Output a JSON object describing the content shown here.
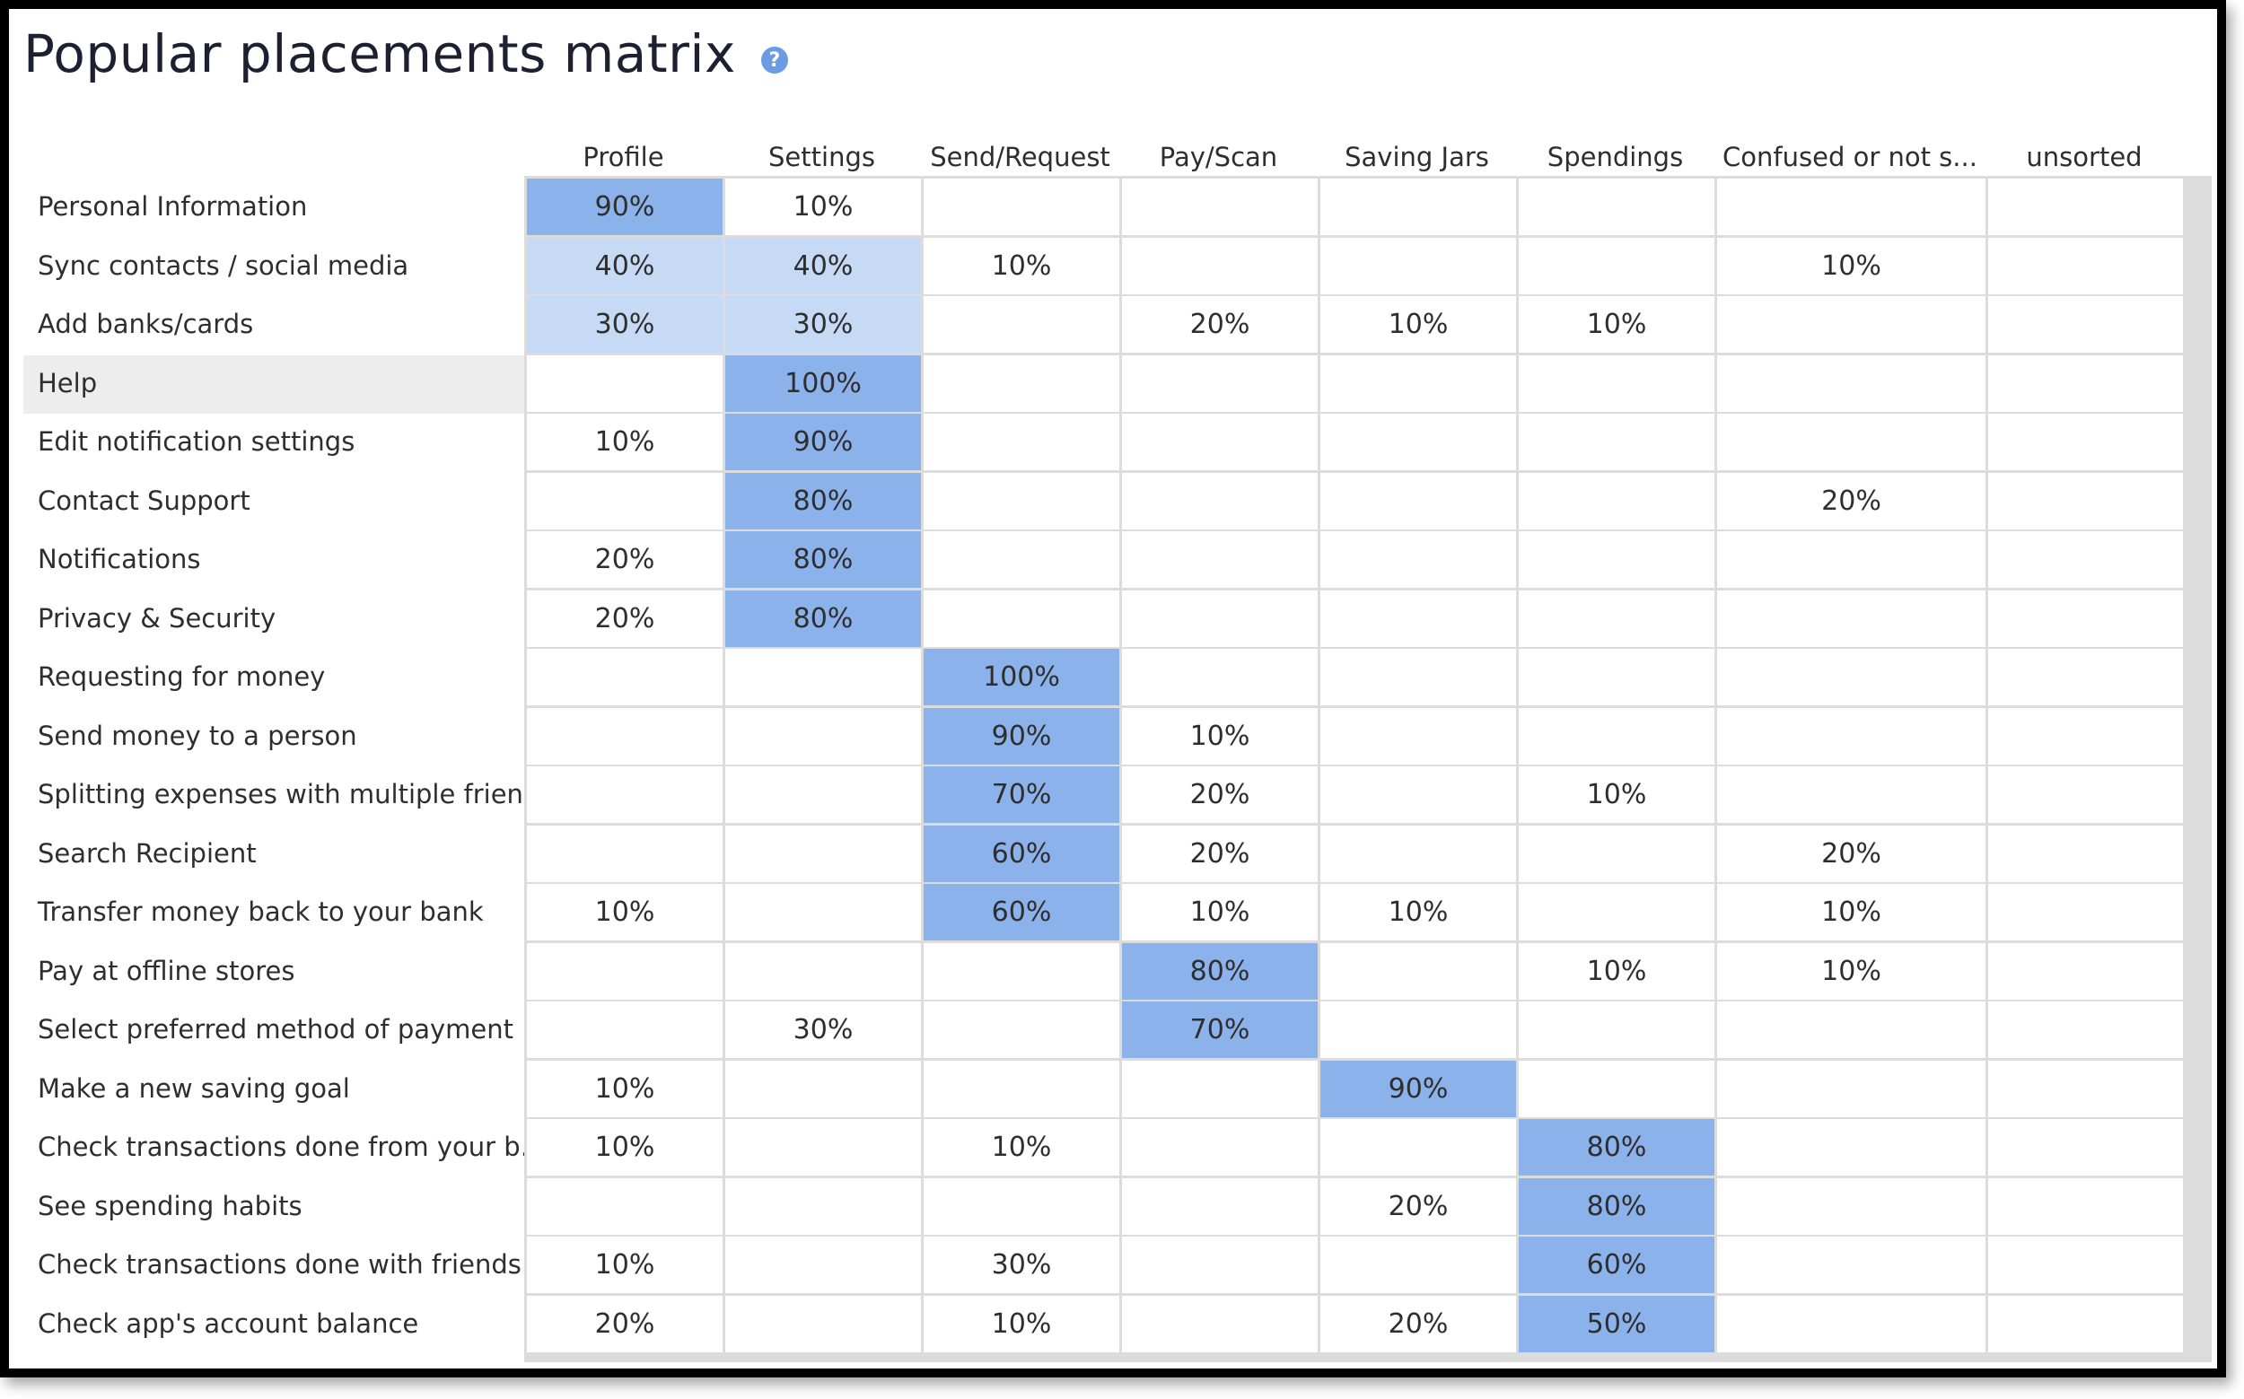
{
  "title": "Popular placements matrix",
  "help_icon": "question-circle-icon",
  "colors": {
    "dark": "#8cb2eb",
    "light": "#c6daf5",
    "highlight_row": "#ededed"
  },
  "columns": [
    "Profile",
    "Settings",
    "Send/Request",
    "Pay/Scan",
    "Saving Jars",
    "Spendings",
    "Confused or not s...",
    "unsorted"
  ],
  "rows": [
    {
      "label": "Personal Information",
      "cells": [
        [
          "90%",
          "dark"
        ],
        [
          "10%",
          ""
        ],
        [
          "",
          ""
        ],
        [
          "",
          ""
        ],
        [
          "",
          ""
        ],
        [
          "",
          ""
        ],
        [
          "",
          ""
        ],
        [
          "",
          ""
        ]
      ]
    },
    {
      "label": "Sync contacts / social media",
      "cells": [
        [
          "40%",
          "light"
        ],
        [
          "40%",
          "light"
        ],
        [
          "10%",
          ""
        ],
        [
          "",
          ""
        ],
        [
          "",
          ""
        ],
        [
          "",
          ""
        ],
        [
          "10%",
          ""
        ],
        [
          "",
          ""
        ]
      ]
    },
    {
      "label": "Add banks/cards",
      "cells": [
        [
          "30%",
          "light"
        ],
        [
          "30%",
          "light"
        ],
        [
          "",
          ""
        ],
        [
          "20%",
          ""
        ],
        [
          "10%",
          ""
        ],
        [
          "10%",
          ""
        ],
        [
          "",
          ""
        ],
        [
          "",
          ""
        ]
      ]
    },
    {
      "label": "Help",
      "highlight": true,
      "cells": [
        [
          "",
          ""
        ],
        [
          "100%",
          "dark"
        ],
        [
          "",
          ""
        ],
        [
          "",
          ""
        ],
        [
          "",
          ""
        ],
        [
          "",
          ""
        ],
        [
          "",
          ""
        ],
        [
          "",
          ""
        ]
      ]
    },
    {
      "label": "Edit notification settings",
      "cells": [
        [
          "10%",
          ""
        ],
        [
          "90%",
          "dark"
        ],
        [
          "",
          ""
        ],
        [
          "",
          ""
        ],
        [
          "",
          ""
        ],
        [
          "",
          ""
        ],
        [
          "",
          ""
        ],
        [
          "",
          ""
        ]
      ]
    },
    {
      "label": "Contact Support",
      "cells": [
        [
          "",
          ""
        ],
        [
          "80%",
          "dark"
        ],
        [
          "",
          ""
        ],
        [
          "",
          ""
        ],
        [
          "",
          ""
        ],
        [
          "",
          ""
        ],
        [
          "20%",
          ""
        ],
        [
          "",
          ""
        ]
      ]
    },
    {
      "label": "Notifications",
      "cells": [
        [
          "20%",
          ""
        ],
        [
          "80%",
          "dark"
        ],
        [
          "",
          ""
        ],
        [
          "",
          ""
        ],
        [
          "",
          ""
        ],
        [
          "",
          ""
        ],
        [
          "",
          ""
        ],
        [
          "",
          ""
        ]
      ]
    },
    {
      "label": "Privacy & Security",
      "cells": [
        [
          "20%",
          ""
        ],
        [
          "80%",
          "dark"
        ],
        [
          "",
          ""
        ],
        [
          "",
          ""
        ],
        [
          "",
          ""
        ],
        [
          "",
          ""
        ],
        [
          "",
          ""
        ],
        [
          "",
          ""
        ]
      ]
    },
    {
      "label": "Requesting for money",
      "cells": [
        [
          "",
          ""
        ],
        [
          "",
          ""
        ],
        [
          "100%",
          "dark"
        ],
        [
          "",
          ""
        ],
        [
          "",
          ""
        ],
        [
          "",
          ""
        ],
        [
          "",
          ""
        ],
        [
          "",
          ""
        ]
      ]
    },
    {
      "label": "Send money to a person",
      "cells": [
        [
          "",
          ""
        ],
        [
          "",
          ""
        ],
        [
          "90%",
          "dark"
        ],
        [
          "10%",
          ""
        ],
        [
          "",
          ""
        ],
        [
          "",
          ""
        ],
        [
          "",
          ""
        ],
        [
          "",
          ""
        ]
      ]
    },
    {
      "label": "Splitting expenses with multiple frien...",
      "cells": [
        [
          "",
          ""
        ],
        [
          "",
          ""
        ],
        [
          "70%",
          "dark"
        ],
        [
          "20%",
          ""
        ],
        [
          "",
          ""
        ],
        [
          "10%",
          ""
        ],
        [
          "",
          ""
        ],
        [
          "",
          ""
        ]
      ]
    },
    {
      "label": "Search Recipient",
      "cells": [
        [
          "",
          ""
        ],
        [
          "",
          ""
        ],
        [
          "60%",
          "dark"
        ],
        [
          "20%",
          ""
        ],
        [
          "",
          ""
        ],
        [
          "",
          ""
        ],
        [
          "20%",
          ""
        ],
        [
          "",
          ""
        ]
      ]
    },
    {
      "label": "Transfer money back to your bank",
      "cells": [
        [
          "10%",
          ""
        ],
        [
          "",
          ""
        ],
        [
          "60%",
          "dark"
        ],
        [
          "10%",
          ""
        ],
        [
          "10%",
          ""
        ],
        [
          "",
          ""
        ],
        [
          "10%",
          ""
        ],
        [
          "",
          ""
        ]
      ]
    },
    {
      "label": "Pay at offline stores",
      "cells": [
        [
          "",
          ""
        ],
        [
          "",
          ""
        ],
        [
          "",
          ""
        ],
        [
          "80%",
          "dark"
        ],
        [
          "",
          ""
        ],
        [
          "10%",
          ""
        ],
        [
          "10%",
          ""
        ],
        [
          "",
          ""
        ]
      ]
    },
    {
      "label": "Select preferred method of payment",
      "cells": [
        [
          "",
          ""
        ],
        [
          "30%",
          ""
        ],
        [
          "",
          ""
        ],
        [
          "70%",
          "dark"
        ],
        [
          "",
          ""
        ],
        [
          "",
          ""
        ],
        [
          "",
          ""
        ],
        [
          "",
          ""
        ]
      ]
    },
    {
      "label": "Make a new saving goal",
      "cells": [
        [
          "10%",
          ""
        ],
        [
          "",
          ""
        ],
        [
          "",
          ""
        ],
        [
          "",
          ""
        ],
        [
          "90%",
          "dark"
        ],
        [
          "",
          ""
        ],
        [
          "",
          ""
        ],
        [
          "",
          ""
        ]
      ]
    },
    {
      "label": "Check transactions done from your b...",
      "cells": [
        [
          "10%",
          ""
        ],
        [
          "",
          ""
        ],
        [
          "10%",
          ""
        ],
        [
          "",
          ""
        ],
        [
          "",
          ""
        ],
        [
          "80%",
          "dark"
        ],
        [
          "",
          ""
        ],
        [
          "",
          ""
        ]
      ]
    },
    {
      "label": "See spending habits",
      "cells": [
        [
          "",
          ""
        ],
        [
          "",
          ""
        ],
        [
          "",
          ""
        ],
        [
          "",
          ""
        ],
        [
          "20%",
          ""
        ],
        [
          "80%",
          "dark"
        ],
        [
          "",
          ""
        ],
        [
          "",
          ""
        ]
      ]
    },
    {
      "label": "Check transactions done with friends...",
      "cells": [
        [
          "10%",
          ""
        ],
        [
          "",
          ""
        ],
        [
          "30%",
          ""
        ],
        [
          "",
          ""
        ],
        [
          "",
          ""
        ],
        [
          "60%",
          "dark"
        ],
        [
          "",
          ""
        ],
        [
          "",
          ""
        ]
      ]
    },
    {
      "label": "Check app's account balance",
      "cells": [
        [
          "20%",
          ""
        ],
        [
          "",
          ""
        ],
        [
          "10%",
          ""
        ],
        [
          "",
          ""
        ],
        [
          "20%",
          ""
        ],
        [
          "50%",
          "dark"
        ],
        [
          "",
          ""
        ],
        [
          "",
          ""
        ]
      ]
    }
  ]
}
